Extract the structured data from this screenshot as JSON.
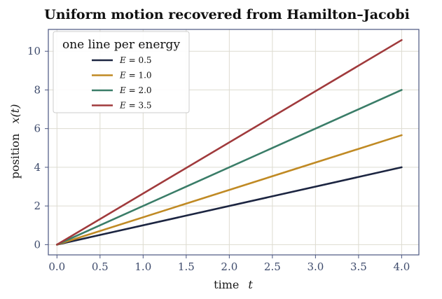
{
  "chart_data": {
    "type": "line",
    "title": "Uniform motion recovered from Hamilton–Jacobi",
    "xlabel": "time",
    "xlabel_symbol": "t",
    "ylabel": "position",
    "ylabel_symbol": "x(t)",
    "xlim": [
      -0.1,
      4.2
    ],
    "ylim": [
      -0.53,
      11.13
    ],
    "xticks": [
      0.0,
      0.5,
      1.0,
      1.5,
      2.0,
      2.5,
      3.0,
      3.5,
      4.0
    ],
    "xtick_labels": [
      "0.0",
      "0.5",
      "1.0",
      "1.5",
      "2.0",
      "2.5",
      "3.0",
      "3.5",
      "4.0"
    ],
    "yticks": [
      0,
      2,
      4,
      6,
      8,
      10
    ],
    "ytick_labels": [
      "0",
      "2",
      "4",
      "6",
      "8",
      "10"
    ],
    "grid": true,
    "legend": {
      "title": "one line per energy",
      "placement": "top-left"
    },
    "series": [
      {
        "name": "E = 0.5",
        "label_var": "E",
        "label_value": "0.5",
        "color": "#1c2541",
        "x": [
          0,
          4
        ],
        "y": [
          0,
          4.0
        ]
      },
      {
        "name": "E = 1.0",
        "label_var": "E",
        "label_value": "1.0",
        "color": "#c08a24",
        "x": [
          0,
          4
        ],
        "y": [
          0,
          5.66
        ]
      },
      {
        "name": "E = 2.0",
        "label_var": "E",
        "label_value": "2.0",
        "color": "#3a7d68",
        "x": [
          0,
          4
        ],
        "y": [
          0,
          8.0
        ]
      },
      {
        "name": "E = 3.5",
        "label_var": "E",
        "label_value": "3.5",
        "color": "#a03a3c",
        "x": [
          0,
          4
        ],
        "y": [
          0,
          10.58
        ]
      }
    ]
  }
}
